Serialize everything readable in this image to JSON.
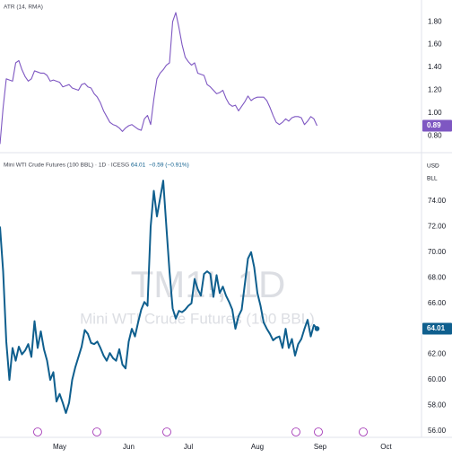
{
  "chart_data": [
    {
      "type": "line",
      "title": "ATR (14, RMA)",
      "color": "#7e57c2",
      "ylim": [
        0.67,
        1.99
      ],
      "yticks": [
        {
          "value": 0.8,
          "label": "0.80"
        },
        {
          "value": 1.0,
          "label": "1.00"
        },
        {
          "value": 1.2,
          "label": "1.20"
        },
        {
          "value": 1.4,
          "label": "1.40"
        },
        {
          "value": 1.6,
          "label": "1.60"
        },
        {
          "value": 1.8,
          "label": "1.80"
        }
      ],
      "grid": false,
      "values": [
        0.73,
        1.05,
        1.3,
        1.29,
        1.28,
        1.44,
        1.46,
        1.38,
        1.32,
        1.28,
        1.3,
        1.37,
        1.36,
        1.35,
        1.35,
        1.33,
        1.28,
        1.29,
        1.28,
        1.27,
        1.23,
        1.24,
        1.25,
        1.22,
        1.21,
        1.2,
        1.25,
        1.26,
        1.23,
        1.22,
        1.17,
        1.14,
        1.09,
        1.02,
        0.97,
        0.92,
        0.9,
        0.89,
        0.87,
        0.84,
        0.87,
        0.89,
        0.9,
        0.88,
        0.86,
        0.85,
        0.95,
        0.98,
        0.9,
        1.12,
        1.3,
        1.35,
        1.38,
        1.42,
        1.44,
        1.8,
        1.88,
        1.75,
        1.6,
        1.49,
        1.45,
        1.42,
        1.44,
        1.35,
        1.34,
        1.33,
        1.25,
        1.23,
        1.2,
        1.17,
        1.18,
        1.2,
        1.13,
        1.08,
        1.06,
        1.07,
        1.02,
        1.06,
        1.1,
        1.15,
        1.11,
        1.13,
        1.14,
        1.14,
        1.14,
        1.11,
        1.05,
        0.98,
        0.92,
        0.9,
        0.92,
        0.95,
        0.93,
        0.96,
        0.97,
        0.97,
        0.96,
        0.9,
        0.93,
        0.97,
        0.95,
        0.89,
        null,
        null,
        null,
        null,
        null,
        null,
        null,
        null,
        null,
        null,
        null,
        null,
        null,
        null,
        null,
        null,
        null,
        null,
        null,
        null,
        null,
        null
      ]
    },
    {
      "type": "line",
      "title": "Mini WTI Crude Futures (100 BBL) · 1D · ICESG",
      "change": "−0.59 (−0.91%)",
      "currency": "USD",
      "unit": "BLL",
      "watermark": [
        "TM1!, 1D",
        "Mini WTI Crude Futures (100 BBL)"
      ],
      "color": "#0f5f8e",
      "ylim": [
        55.5,
        77.65
      ],
      "yticks": [
        {
          "value": 56,
          "label": "56.00"
        },
        {
          "value": 58,
          "label": "58.00"
        },
        {
          "value": 60,
          "label": "60.00"
        },
        {
          "value": 62,
          "label": "62.00"
        },
        {
          "value": 66,
          "label": "66.00"
        },
        {
          "value": 68,
          "label": "68.00"
        },
        {
          "value": 70,
          "label": "70.00"
        },
        {
          "value": 72,
          "label": "72.00"
        },
        {
          "value": 74,
          "label": "74.00"
        }
      ],
      "grid": false,
      "categories": [
        null,
        null,
        null,
        null,
        null,
        null,
        null,
        null,
        null,
        null,
        null,
        null,
        null,
        null,
        null,
        null,
        null,
        null,
        null,
        "May",
        null,
        null,
        null,
        null,
        null,
        null,
        null,
        null,
        null,
        null,
        null,
        null,
        null,
        null,
        null,
        null,
        null,
        null,
        null,
        null,
        null,
        "Jun",
        null,
        null,
        null,
        null,
        null,
        null,
        null,
        null,
        null,
        null,
        null,
        null,
        null,
        null,
        null,
        null,
        null,
        null,
        "Jul",
        null,
        null,
        null,
        null,
        null,
        null,
        null,
        null,
        null,
        null,
        null,
        null,
        null,
        null,
        null,
        null,
        null,
        null,
        null,
        null,
        null,
        "Aug",
        null,
        null,
        null,
        null,
        null,
        null,
        null,
        null,
        null,
        null,
        null,
        null,
        null,
        null,
        null,
        null,
        null,
        null,
        null,
        "Sep",
        null,
        null,
        null,
        null,
        null,
        null,
        null,
        null,
        null,
        null,
        null,
        null,
        null,
        null,
        null,
        null,
        null,
        null,
        null,
        null,
        "Oct"
      ],
      "values": [
        72.0,
        68.5,
        63.0,
        60.0,
        62.5,
        61.5,
        62.6,
        62.0,
        62.3,
        62.8,
        61.8,
        64.6,
        62.5,
        63.8,
        62.4,
        61.5,
        60.0,
        60.6,
        58.3,
        58.9,
        58.2,
        57.4,
        58.2,
        60.0,
        61.0,
        61.8,
        62.6,
        63.9,
        63.6,
        62.9,
        62.8,
        63.0,
        62.5,
        61.9,
        61.5,
        62.1,
        61.7,
        61.5,
        62.4,
        61.2,
        60.9,
        63.0,
        64.0,
        63.4,
        64.5,
        65.5,
        66.1,
        65.8,
        72.0,
        74.8,
        72.8,
        74.2,
        75.6,
        72.0,
        68.5,
        65.6,
        64.8,
        65.4,
        65.3,
        65.5,
        65.8,
        66.0,
        67.9,
        67.1,
        66.6,
        68.3,
        68.5,
        68.3,
        66.5,
        68.2,
        66.8,
        67.3,
        66.6,
        66.1,
        65.5,
        64.0,
        65.0,
        65.5,
        67.5,
        69.5,
        70.0,
        68.8,
        66.8,
        65.8,
        64.5,
        64.0,
        63.6,
        63.1,
        63.3,
        63.4,
        62.5,
        64.0,
        62.5,
        63.2,
        61.9,
        62.8,
        63.2,
        64.0,
        64.7,
        63.4,
        64.3,
        64.01,
        null,
        null,
        null,
        null,
        null,
        null,
        null,
        null,
        null,
        null,
        null,
        null,
        null,
        null,
        null,
        null,
        null,
        null,
        null,
        null,
        null,
        null
      ]
    }
  ]
}
